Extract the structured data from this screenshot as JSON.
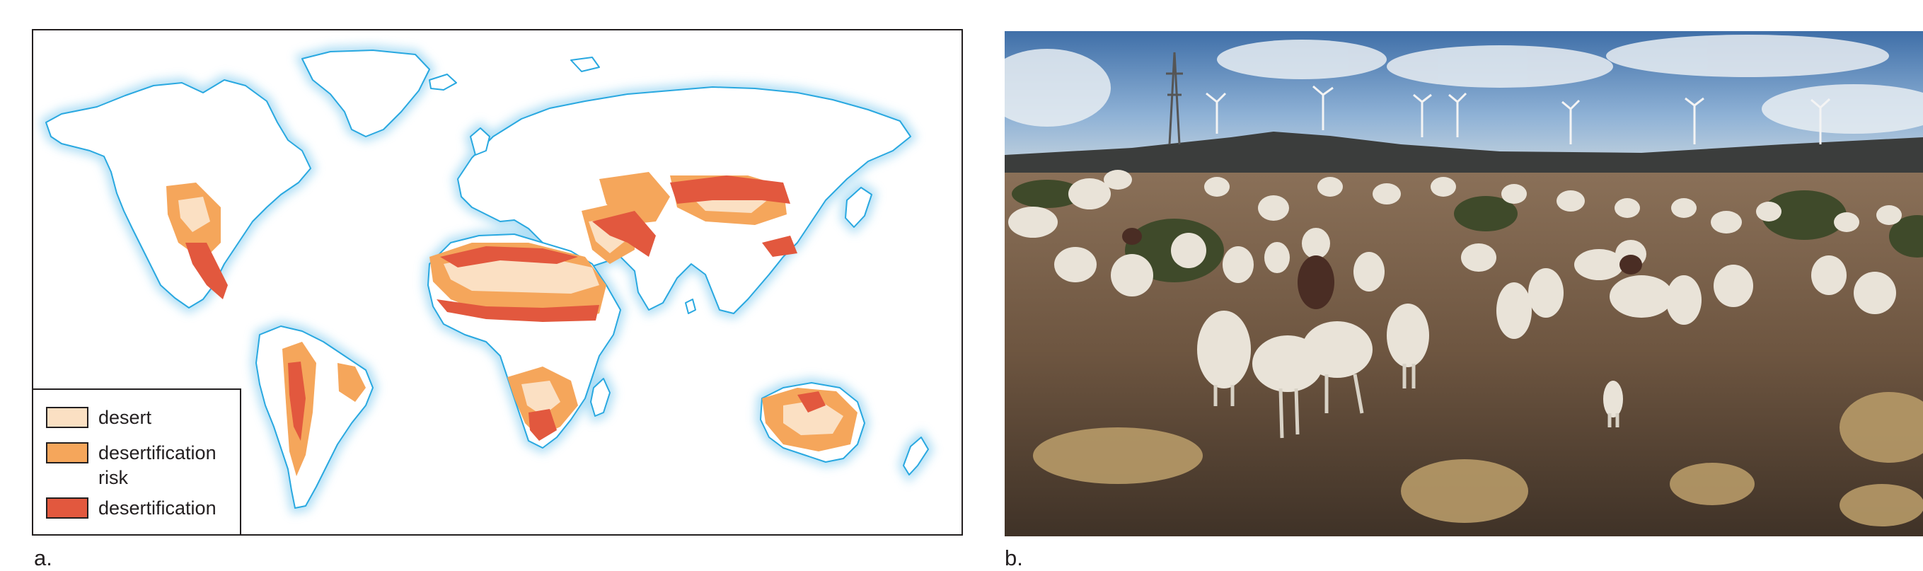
{
  "panel_a": {
    "letter": "a.",
    "legend": {
      "items": [
        {
          "label": "desert",
          "color": "#fbe0c3"
        },
        {
          "label": "desertification risk",
          "label_lines": [
            "desertification",
            "risk"
          ],
          "color": "#f5a65b"
        },
        {
          "label": "desertification",
          "color": "#e2583e"
        }
      ]
    },
    "colors": {
      "land": "#ffffff",
      "coast_glow": "#a9dcf4",
      "coastline": "#29a8e0"
    }
  },
  "panel_b": {
    "letter": "b."
  }
}
